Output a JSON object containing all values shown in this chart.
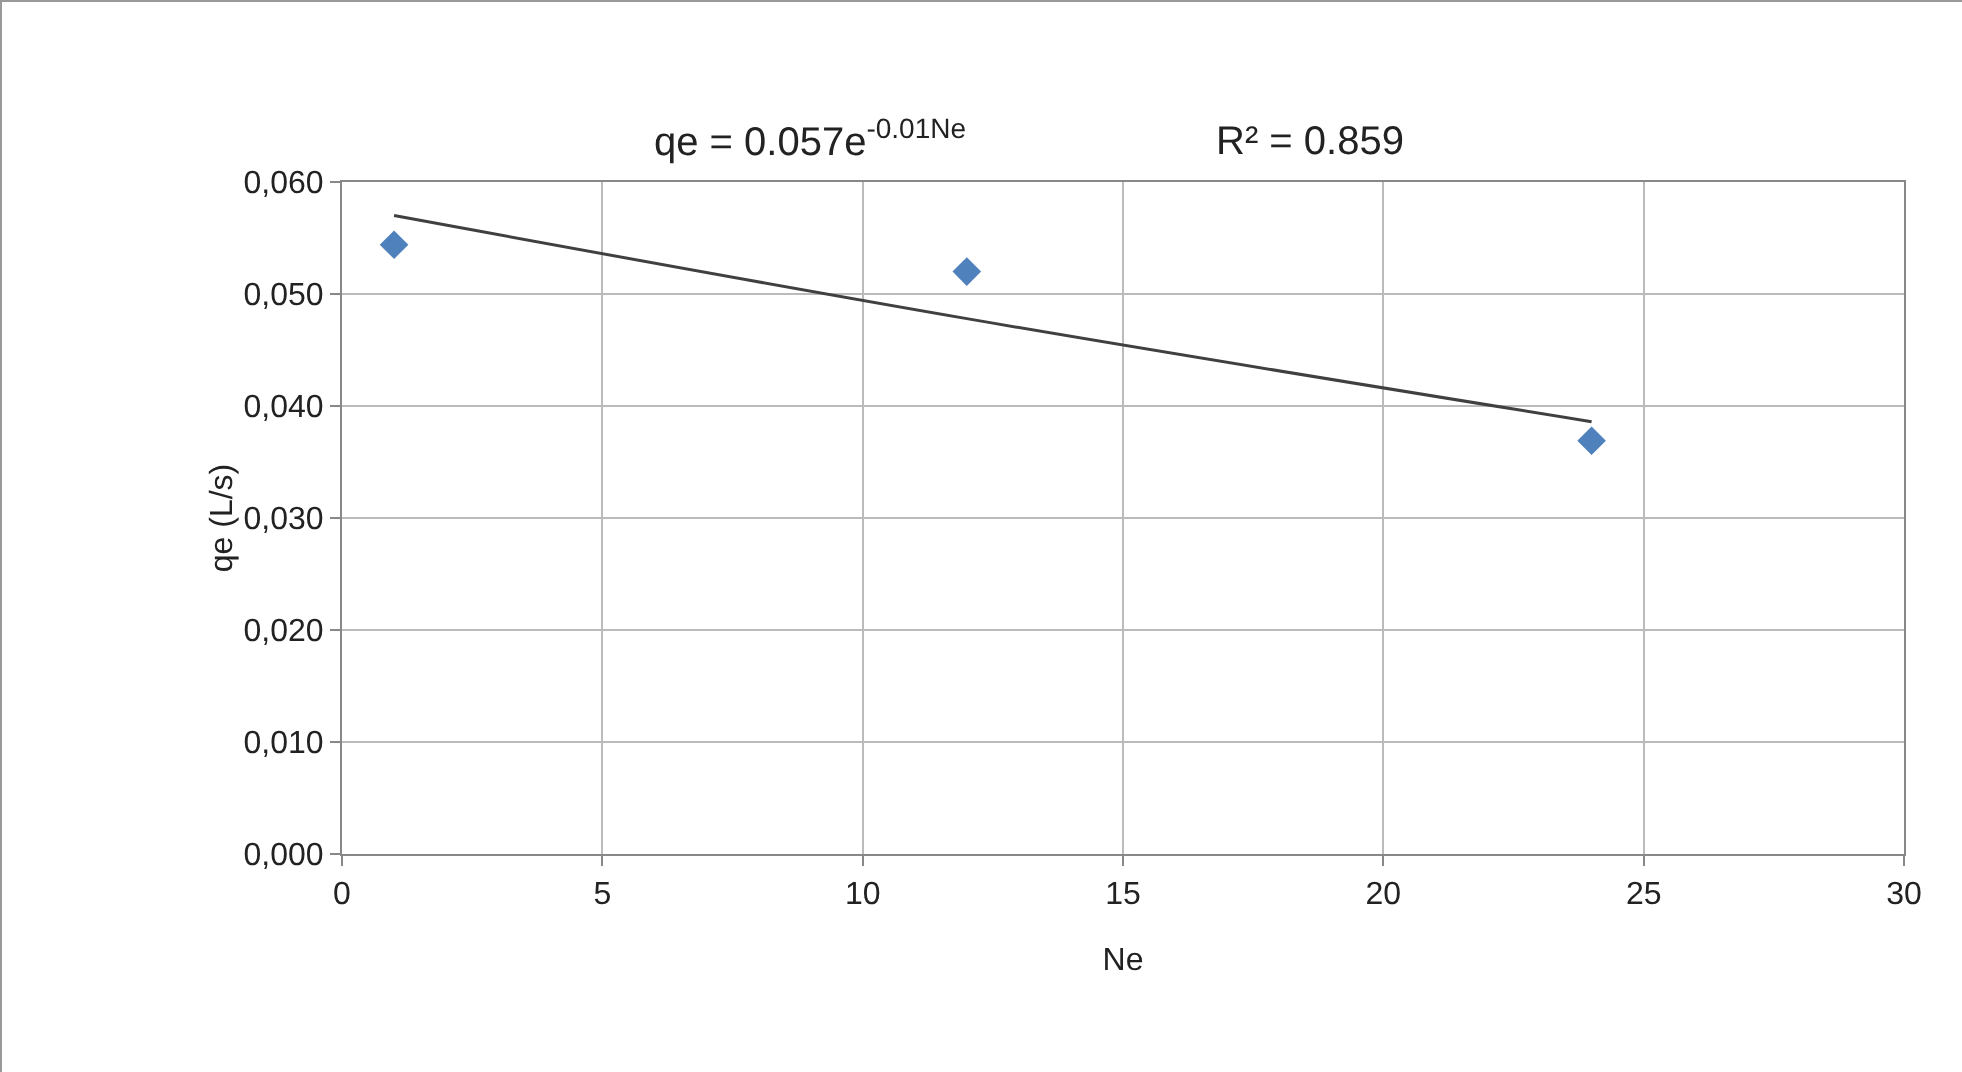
{
  "chart_data": {
    "type": "scatter",
    "xlabel": "Ne",
    "ylabel": "qe (L/s)",
    "annotations": [
      "qe = 0.057e$^{-0.01Ne}$",
      "R² = 0.859"
    ],
    "series": [
      {
        "type": "scatter",
        "color": "#4f81bd",
        "marker": "diamond",
        "x": [
          1,
          12,
          24
        ],
        "values": [
          0.0544,
          0.052,
          0.0369
        ]
      },
      {
        "type": "line",
        "color": "#404040",
        "marker": "none",
        "x": [
          1,
          12,
          24
        ],
        "values": [
          0.057,
          0.0478,
          0.0386
        ]
      }
    ],
    "xlim": [
      0,
      30
    ],
    "xticks": [
      0,
      5,
      10,
      15,
      20,
      25,
      30
    ],
    "ylim": [
      0,
      0.06
    ],
    "yticks": [
      {
        "value": 0,
        "label": "0,000"
      },
      {
        "value": 0.01,
        "label": "0,010"
      },
      {
        "value": 0.02,
        "label": "0,020"
      },
      {
        "value": 0.03,
        "label": "0,030"
      },
      {
        "value": 0.04,
        "label": "0,040"
      },
      {
        "value": 0.05,
        "label": "0,050"
      },
      {
        "value": 0.06,
        "label": "0,060"
      }
    ],
    "grid": true
  }
}
